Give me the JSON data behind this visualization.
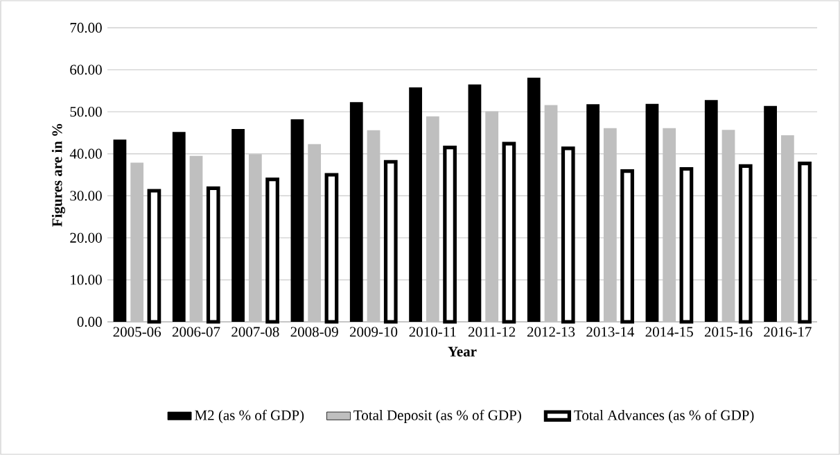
{
  "chart_data": {
    "type": "bar",
    "xlabel": "Year",
    "ylabel": "Figures are in %",
    "categories": [
      "2005-06",
      "2006-07",
      "2007-08",
      "2008-09",
      "2009-10",
      "2010-11",
      "2011-12",
      "2012-13",
      "2013-14",
      "2014-15",
      "2015-16",
      "2016-17"
    ],
    "series": [
      {
        "name": "M2 (as % of GDP)",
        "color": "#000000",
        "values": [
          43.4,
          45.2,
          45.9,
          48.2,
          52.3,
          55.8,
          56.5,
          58.1,
          51.8,
          51.9,
          52.8,
          51.4
        ]
      },
      {
        "name": "Total Deposit (as % of GDP)",
        "color": "#bfbfbf",
        "values": [
          37.9,
          39.5,
          39.9,
          42.3,
          45.6,
          48.9,
          50.1,
          51.6,
          46.1,
          46.1,
          45.7,
          44.4
        ]
      },
      {
        "name": "Total Advances (as % of GDP)",
        "color": "#ffffff",
        "values": [
          31.2,
          31.8,
          33.9,
          35.0,
          38.1,
          41.5,
          42.4,
          41.3,
          35.9,
          36.4,
          37.1,
          37.7
        ]
      }
    ],
    "ylim": [
      0,
      70
    ],
    "yticks": [
      {
        "value": 0,
        "label": "0.00"
      },
      {
        "value": 10,
        "label": "10.00"
      },
      {
        "value": 20,
        "label": "20.00"
      },
      {
        "value": 30,
        "label": "30.00"
      },
      {
        "value": 40,
        "label": "40.00"
      },
      {
        "value": 50,
        "label": "50.00"
      },
      {
        "value": 60,
        "label": "60.00"
      },
      {
        "value": 70,
        "label": "70.00"
      }
    ],
    "grid": "y",
    "legend": "bottom"
  }
}
